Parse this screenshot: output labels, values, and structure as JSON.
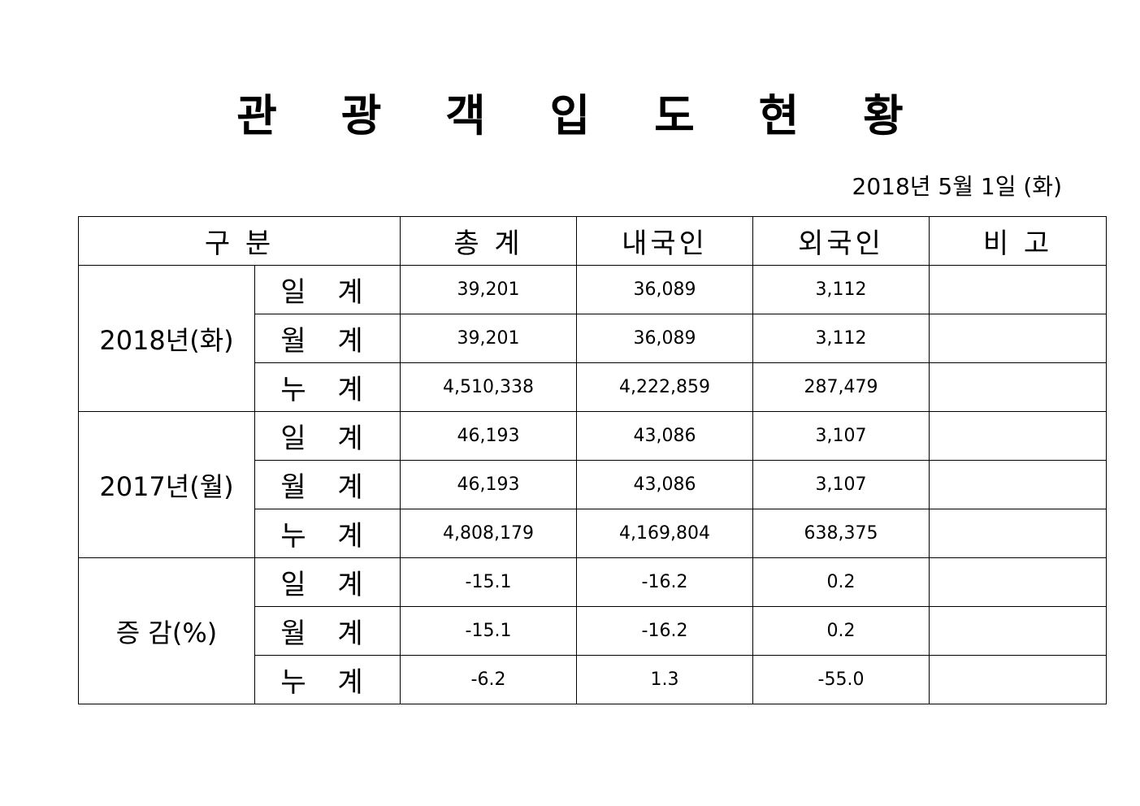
{
  "title": "관 광 객 입 도 현 황",
  "date": "2018년  5월  1일  (화)",
  "headers": {
    "category": "구    분",
    "total": "총    계",
    "domestic": "내국인",
    "foreign": "외국인",
    "note": "비    고"
  },
  "groups": [
    {
      "label": "2018년(화)",
      "rows": [
        {
          "label": "일 계",
          "total": "39,201",
          "domestic": "36,089",
          "foreign": "3,112",
          "note": ""
        },
        {
          "label": "월 계",
          "total": "39,201",
          "domestic": "36,089",
          "foreign": "3,112",
          "note": ""
        },
        {
          "label": "누 계",
          "total": "4,510,338",
          "domestic": "4,222,859",
          "foreign": "287,479",
          "note": ""
        }
      ]
    },
    {
      "label": "2017년(월)",
      "rows": [
        {
          "label": "일 계",
          "total": "46,193",
          "domestic": "43,086",
          "foreign": "3,107",
          "note": ""
        },
        {
          "label": "월 계",
          "total": "46,193",
          "domestic": "43,086",
          "foreign": "3,107",
          "note": ""
        },
        {
          "label": "누 계",
          "total": "4,808,179",
          "domestic": "4,169,804",
          "foreign": "638,375",
          "note": ""
        }
      ]
    },
    {
      "label": "증 감(%)",
      "rows": [
        {
          "label": "일 계",
          "total": "-15.1",
          "domestic": "-16.2",
          "foreign": "0.2",
          "note": ""
        },
        {
          "label": "월 계",
          "total": "-15.1",
          "domestic": "-16.2",
          "foreign": "0.2",
          "note": ""
        },
        {
          "label": "누 계",
          "total": "-6.2",
          "domestic": "1.3",
          "foreign": "-55.0",
          "note": ""
        }
      ]
    }
  ]
}
